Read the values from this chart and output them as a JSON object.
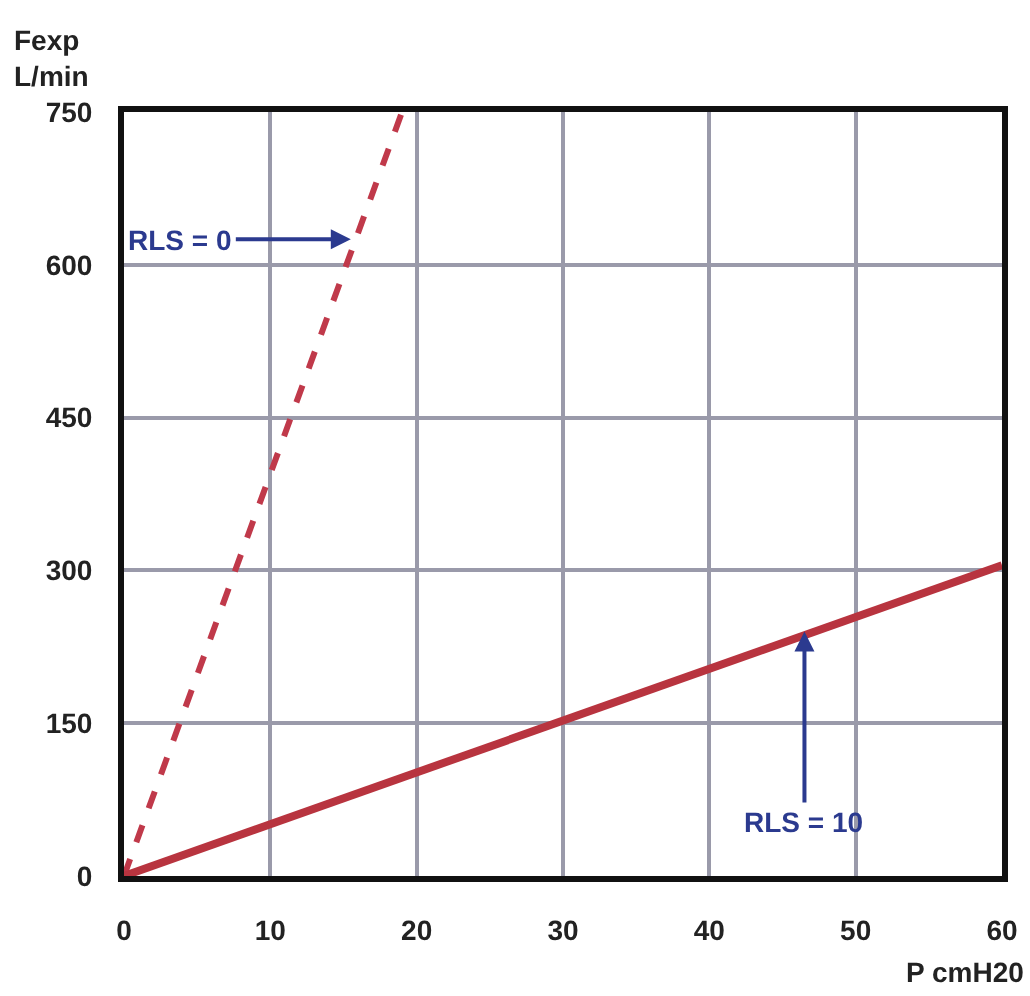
{
  "chart_data": {
    "type": "line",
    "xlabel": "P cmH20",
    "ylabel": "Fexp\nL/min",
    "xlim": [
      0,
      60
    ],
    "xticks": [
      0,
      10,
      20,
      30,
      40,
      50,
      60
    ],
    "ylim": [
      0,
      750
    ],
    "yticks": [
      0,
      150,
      300,
      450,
      600,
      750
    ],
    "grid": true,
    "marker": "none",
    "series": [
      {
        "x": [
          0,
          19
        ],
        "values": [
          0,
          750
        ],
        "color": "#c0394a",
        "line_style": "dashed"
      },
      {
        "x": [
          0,
          60
        ],
        "values": [
          0,
          305
        ],
        "color": "#b8343f",
        "line_style": "solid"
      }
    ],
    "annotations": [
      {
        "text": "RLS = 0",
        "x": 15.5,
        "y": 625
      },
      {
        "text": "RLS = 10",
        "x": 46.5,
        "y": 240
      }
    ]
  }
}
